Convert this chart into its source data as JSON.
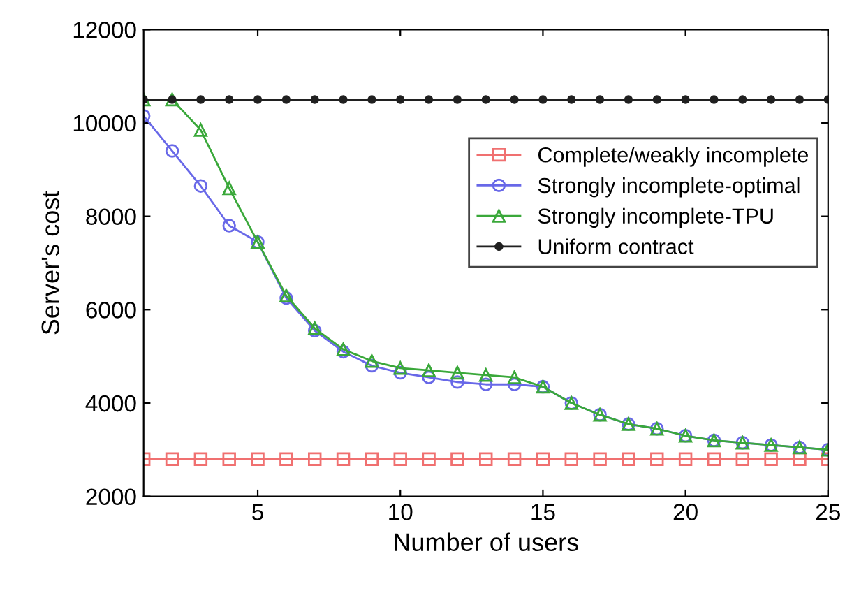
{
  "chart_data": {
    "type": "line",
    "xlabel": "Number of users",
    "ylabel": "Server's cost",
    "x": [
      1,
      2,
      3,
      4,
      5,
      6,
      7,
      8,
      9,
      10,
      11,
      12,
      13,
      14,
      15,
      16,
      17,
      18,
      19,
      20,
      21,
      22,
      23,
      24,
      25
    ],
    "series": [
      {
        "name": "Complete/weakly incomplete",
        "color": "#f07070",
        "marker": "square",
        "values": [
          2800,
          2800,
          2800,
          2800,
          2800,
          2800,
          2800,
          2800,
          2800,
          2800,
          2800,
          2800,
          2800,
          2800,
          2800,
          2800,
          2800,
          2800,
          2800,
          2800,
          2800,
          2800,
          2800,
          2800,
          2800
        ]
      },
      {
        "name": "Strongly incomplete-optimal",
        "color": "#6868e8",
        "marker": "circle",
        "values": [
          10150,
          9400,
          8650,
          7800,
          7450,
          6250,
          5550,
          5100,
          4800,
          4650,
          4550,
          4450,
          4400,
          4400,
          4350,
          4000,
          3750,
          3550,
          3450,
          3300,
          3200,
          3150,
          3100,
          3050,
          3000
        ]
      },
      {
        "name": "Strongly incomplete-TPU",
        "color": "#3aa83a",
        "marker": "triangle",
        "values": [
          10500,
          10500,
          9850,
          8600,
          7450,
          6300,
          5600,
          5150,
          4900,
          4750,
          4700,
          4650,
          4600,
          4550,
          4350,
          4000,
          3750,
          3550,
          3450,
          3300,
          3200,
          3150,
          3100,
          3050,
          3000
        ]
      },
      {
        "name": "Uniform contract",
        "color": "#202020",
        "marker": "dot",
        "values": [
          10500,
          10500,
          10500,
          10500,
          10500,
          10500,
          10500,
          10500,
          10500,
          10500,
          10500,
          10500,
          10500,
          10500,
          10500,
          10500,
          10500,
          10500,
          10500,
          10500,
          10500,
          10500,
          10500,
          10500,
          10500
        ]
      }
    ],
    "xlim": [
      1,
      25
    ],
    "xticks": [
      5,
      10,
      15,
      20,
      25
    ],
    "ylim": [
      2000,
      12000
    ],
    "yticks": [
      2000,
      4000,
      6000,
      8000,
      10000,
      12000
    ],
    "grid": false,
    "legend": "top right",
    "line_style": "solid"
  }
}
